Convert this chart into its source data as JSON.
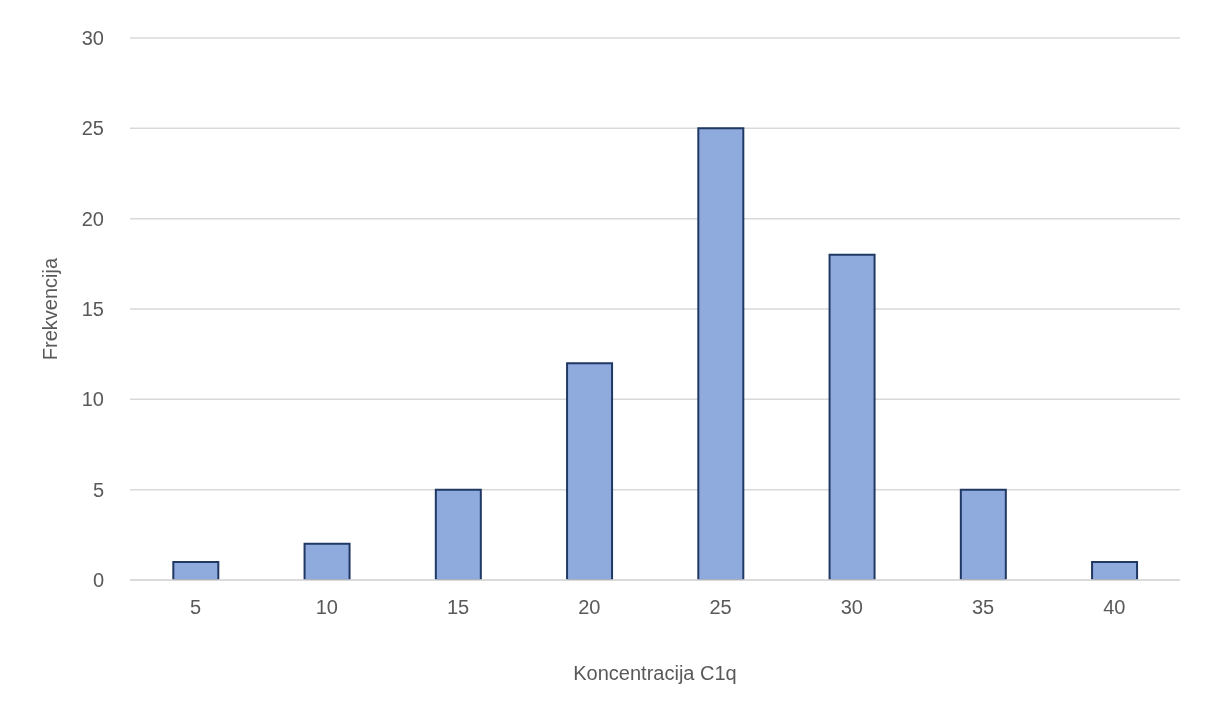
{
  "chart_data": {
    "type": "bar",
    "xlabel": "Koncentracija C1q",
    "ylabel": "Frekvencija",
    "categories": [
      "5",
      "10",
      "15",
      "20",
      "25",
      "30",
      "35",
      "40"
    ],
    "values": [
      1,
      2,
      5,
      12,
      25,
      18,
      5,
      1
    ],
    "color": "#8faadc",
    "ylim": [
      0,
      30
    ],
    "yticks": [
      0,
      5,
      10,
      15,
      20,
      25,
      30
    ],
    "grid": "y"
  }
}
